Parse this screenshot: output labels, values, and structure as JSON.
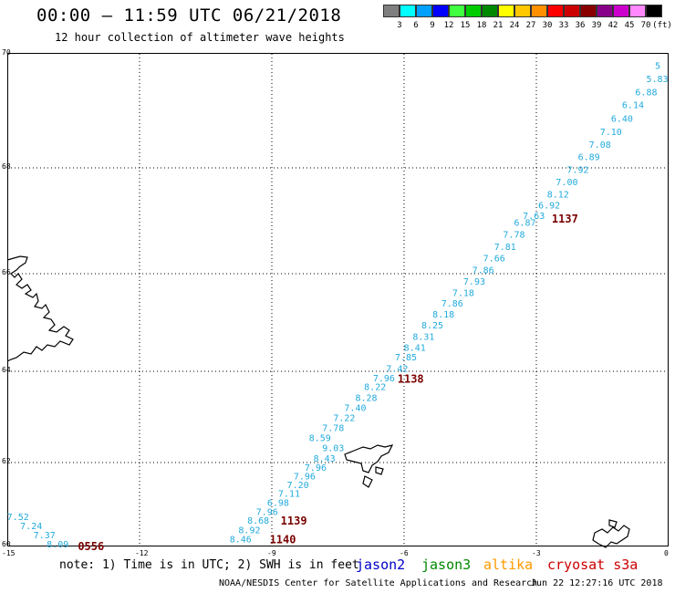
{
  "header": {
    "title": "00:00 – 11:59 UTC 06/21/2018",
    "subtitle": "12 hour collection of altimeter wave heights"
  },
  "legend": {
    "unit": "(ft)",
    "items": [
      {
        "label": "3",
        "color": "#7f7f7f"
      },
      {
        "label": "6",
        "color": "#00ffff"
      },
      {
        "label": "9",
        "color": "#00a0ff"
      },
      {
        "label": "12",
        "color": "#0000ff"
      },
      {
        "label": "15",
        "color": "#40ff40"
      },
      {
        "label": "18",
        "color": "#00cc00"
      },
      {
        "label": "21",
        "color": "#008800"
      },
      {
        "label": "24",
        "color": "#ffff00"
      },
      {
        "label": "27",
        "color": "#ffc800"
      },
      {
        "label": "30",
        "color": "#ff9000"
      },
      {
        "label": "33",
        "color": "#ff0000"
      },
      {
        "label": "36",
        "color": "#cc0000"
      },
      {
        "label": "39",
        "color": "#880000"
      },
      {
        "label": "42",
        "color": "#880088"
      },
      {
        "label": "45",
        "color": "#cc00cc"
      },
      {
        "label": "70",
        "color": "#ff88ff"
      },
      {
        "label": "",
        "color": "#000000"
      }
    ]
  },
  "map": {
    "lat_labels": [
      "70",
      "68",
      "66",
      "64",
      "62",
      "60"
    ],
    "lon_labels": [
      "-15",
      "-12",
      "-9",
      "-6",
      "-3",
      "0"
    ],
    "wave_heights": [
      {
        "lon": -0.1,
        "lat": 69.8,
        "v": "5"
      },
      {
        "lon": -0.3,
        "lat": 69.57,
        "v": "5.83"
      },
      {
        "lon": -0.55,
        "lat": 69.34,
        "v": "6.88"
      },
      {
        "lon": -0.85,
        "lat": 69.11,
        "v": "6.14"
      },
      {
        "lon": -1.1,
        "lat": 68.87,
        "v": "6.40"
      },
      {
        "lon": -1.35,
        "lat": 68.64,
        "v": "7.10"
      },
      {
        "lon": -1.6,
        "lat": 68.42,
        "v": "7.08"
      },
      {
        "lon": -1.85,
        "lat": 68.2,
        "v": "6.89"
      },
      {
        "lon": -2.1,
        "lat": 67.97,
        "v": "7.92"
      },
      {
        "lon": -2.35,
        "lat": 67.74,
        "v": "7.00"
      },
      {
        "lon": -2.55,
        "lat": 67.51,
        "v": "8.12"
      },
      {
        "lon": -2.75,
        "lat": 67.3,
        "v": "6.92"
      },
      {
        "lon": -3.1,
        "lat": 67.1,
        "v": "7.63"
      },
      {
        "lon": -3.3,
        "lat": 66.97,
        "v": "6.87"
      },
      {
        "lon": -3.55,
        "lat": 66.75,
        "v": "7.78"
      },
      {
        "lon": -3.75,
        "lat": 66.52,
        "v": "7.81"
      },
      {
        "lon": -4.0,
        "lat": 66.3,
        "v": "7.66"
      },
      {
        "lon": -4.25,
        "lat": 66.08,
        "v": "7.86"
      },
      {
        "lon": -4.45,
        "lat": 65.85,
        "v": "7.93"
      },
      {
        "lon": -4.7,
        "lat": 65.62,
        "v": "7.18"
      },
      {
        "lon": -4.95,
        "lat": 65.4,
        "v": "7.86"
      },
      {
        "lon": -5.15,
        "lat": 65.18,
        "v": "8.18"
      },
      {
        "lon": -5.4,
        "lat": 64.95,
        "v": "8.25"
      },
      {
        "lon": -5.6,
        "lat": 64.72,
        "v": "8.31"
      },
      {
        "lon": -5.8,
        "lat": 64.5,
        "v": "8.41"
      },
      {
        "lon": -6.0,
        "lat": 64.3,
        "v": "7.85"
      },
      {
        "lon": -6.2,
        "lat": 64.07,
        "v": "7.42"
      },
      {
        "lon": -6.5,
        "lat": 63.86,
        "v": "7.96"
      },
      {
        "lon": -6.7,
        "lat": 63.67,
        "v": "8.22"
      },
      {
        "lon": -6.9,
        "lat": 63.43,
        "v": "8.28"
      },
      {
        "lon": -7.15,
        "lat": 63.21,
        "v": "7.40"
      },
      {
        "lon": -7.4,
        "lat": 62.99,
        "v": "7.22"
      },
      {
        "lon": -7.65,
        "lat": 62.77,
        "v": "7.78"
      },
      {
        "lon": -7.95,
        "lat": 62.55,
        "v": "8.59"
      },
      {
        "lon": -7.65,
        "lat": 62.33,
        "v": "9.03",
        "color": "#0000cc"
      },
      {
        "lon": -7.85,
        "lat": 62.1,
        "v": "8.43"
      },
      {
        "lon": -8.05,
        "lat": 61.89,
        "v": "7.96"
      },
      {
        "lon": -8.3,
        "lat": 61.68,
        "v": "7.96"
      },
      {
        "lon": -8.45,
        "lat": 61.47,
        "v": "7.20"
      },
      {
        "lon": -8.65,
        "lat": 61.26,
        "v": "7.11"
      },
      {
        "lon": -8.9,
        "lat": 61.04,
        "v": "6.98"
      },
      {
        "lon": -9.15,
        "lat": 60.82,
        "v": "7.96"
      },
      {
        "lon": -9.35,
        "lat": 60.61,
        "v": "8.68"
      },
      {
        "lon": -9.55,
        "lat": 60.39,
        "v": "8.92"
      },
      {
        "lon": -9.75,
        "lat": 60.17,
        "v": "8.46"
      },
      {
        "lon": -14.8,
        "lat": 60.7,
        "v": "7.52"
      },
      {
        "lon": -14.5,
        "lat": 60.48,
        "v": "7.24"
      },
      {
        "lon": -14.2,
        "lat": 60.26,
        "v": "7.37"
      },
      {
        "lon": -13.9,
        "lat": 60.04,
        "v": "8.09"
      }
    ],
    "pass_times": [
      {
        "lon": -2.65,
        "lat": 67.05,
        "t": "1137",
        "color": "#7a0000"
      },
      {
        "lon": -6.15,
        "lat": 63.85,
        "t": "1138",
        "color": "#7a0000"
      },
      {
        "lon": -8.8,
        "lat": 60.62,
        "t": "1139",
        "color": "#7a0000"
      },
      {
        "lon": -9.05,
        "lat": 60.17,
        "t": "1140",
        "color": "#7a0000"
      },
      {
        "lon": -13.4,
        "lat": 60.0,
        "t": "0556",
        "color": "#ff9900"
      }
    ]
  },
  "footer": {
    "note": "note: 1) Time is in UTC; 2) SWH is in feet",
    "satellites": [
      {
        "name": "jason2",
        "color": "#0000cc"
      },
      {
        "name": "jason3",
        "color": "#008800"
      },
      {
        "name": "altika",
        "color": "#ff9900"
      },
      {
        "name": "cryosat s3a",
        "color": "#cc0000"
      }
    ],
    "credit": "NOAA/NESDIS Center for Satellite Applications and Research",
    "timestamp": "Jun 22 12:27:16 UTC 2018"
  }
}
